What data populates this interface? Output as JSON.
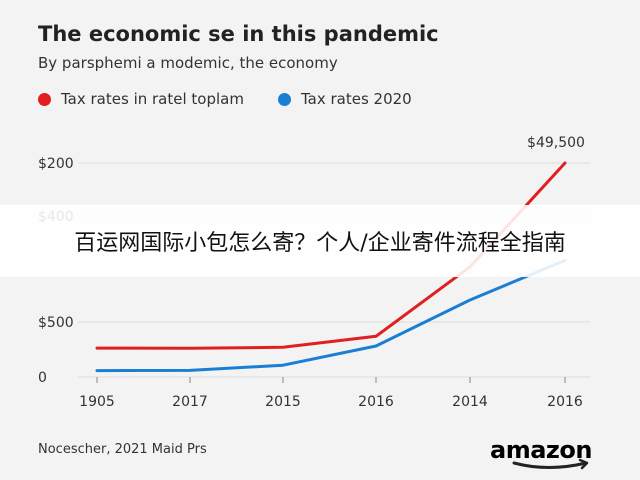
{
  "header": {
    "title": "The economic se in this pandemic",
    "subtitle": "By parsphemi a modemic, the economy"
  },
  "legend": [
    {
      "label": "Tax rates in ratel toplam",
      "color": "#e02020"
    },
    {
      "label": "Tax rates 2020",
      "color": "#1a7fd4"
    }
  ],
  "banner": {
    "text": "百运网国际小包怎么寄？个人/企业寄件流程全指南"
  },
  "footer": {
    "source": "Nocescher, 2021 Maid Prs"
  },
  "logo": {
    "text": "amazon"
  },
  "chart_data": {
    "type": "line",
    "categories": [
      "1905",
      "2017",
      "2015",
      "2016",
      "2014",
      "2016"
    ],
    "yticks": [
      "0",
      "$500",
      "$400",
      "$200"
    ],
    "annotation": "$49,500",
    "series": [
      {
        "name": "Tax rates in ratel toplam",
        "color": "#e02020",
        "values": [
          270,
          268,
          278,
          380,
          1030,
          2000
        ]
      },
      {
        "name": "Tax rates 2020",
        "color": "#1a7fd4",
        "values": [
          60,
          62,
          110,
          290,
          720,
          1090
        ]
      }
    ],
    "grid": true,
    "legend_position": "top-left"
  }
}
